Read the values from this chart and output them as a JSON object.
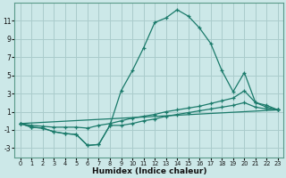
{
  "xlabel": "Humidex (Indice chaleur)",
  "background_color": "#cce8e8",
  "grid_color": "#aacccc",
  "line_color": "#1a7a6a",
  "xlim": [
    -0.5,
    23.5
  ],
  "ylim": [
    -4.0,
    13.0
  ],
  "xticks": [
    0,
    1,
    2,
    3,
    4,
    5,
    6,
    7,
    8,
    9,
    10,
    11,
    12,
    13,
    14,
    15,
    16,
    17,
    18,
    19,
    20,
    21,
    22,
    23
  ],
  "yticks": [
    -3,
    -1,
    1,
    3,
    5,
    7,
    9,
    11
  ],
  "series_top": {
    "x": [
      0,
      1,
      2,
      3,
      4,
      5,
      6,
      7,
      8,
      9,
      10,
      11,
      12,
      13,
      14,
      15,
      16,
      17,
      18,
      19,
      20,
      21,
      22,
      23
    ],
    "y": [
      -0.3,
      -0.7,
      -0.8,
      -1.2,
      -1.4,
      -1.5,
      -2.7,
      -2.6,
      -0.5,
      3.3,
      5.5,
      8.0,
      10.8,
      11.3,
      12.2,
      11.5,
      10.2,
      8.5,
      5.5,
      3.2,
      5.3,
      2.0,
      1.5,
      1.2
    ]
  },
  "series_upper_mid": {
    "x": [
      0,
      1,
      2,
      3,
      4,
      5,
      6,
      7,
      8,
      9,
      10,
      11,
      12,
      13,
      14,
      15,
      16,
      17,
      18,
      19,
      20,
      21,
      22,
      23
    ],
    "y": [
      -0.3,
      -0.5,
      -0.6,
      -0.7,
      -0.7,
      -0.7,
      -0.8,
      -0.5,
      -0.3,
      0.0,
      0.3,
      0.5,
      0.7,
      1.0,
      1.2,
      1.4,
      1.6,
      1.9,
      2.2,
      2.5,
      3.3,
      2.0,
      1.7,
      1.2
    ]
  },
  "series_lower_mid": {
    "x": [
      0,
      23
    ],
    "y": [
      -0.3,
      1.2
    ]
  },
  "series_bot": {
    "x": [
      0,
      1,
      2,
      3,
      4,
      5,
      6,
      7,
      8,
      9,
      10,
      11,
      12,
      13,
      14,
      15,
      16,
      17,
      18,
      19,
      20,
      21,
      22,
      23
    ],
    "y": [
      -0.3,
      -0.7,
      -0.8,
      -1.2,
      -1.4,
      -1.5,
      -2.7,
      -2.6,
      -0.5,
      -0.5,
      -0.3,
      0.0,
      0.2,
      0.5,
      0.7,
      0.9,
      1.1,
      1.3,
      1.5,
      1.7,
      2.0,
      1.5,
      1.3,
      1.2
    ]
  }
}
